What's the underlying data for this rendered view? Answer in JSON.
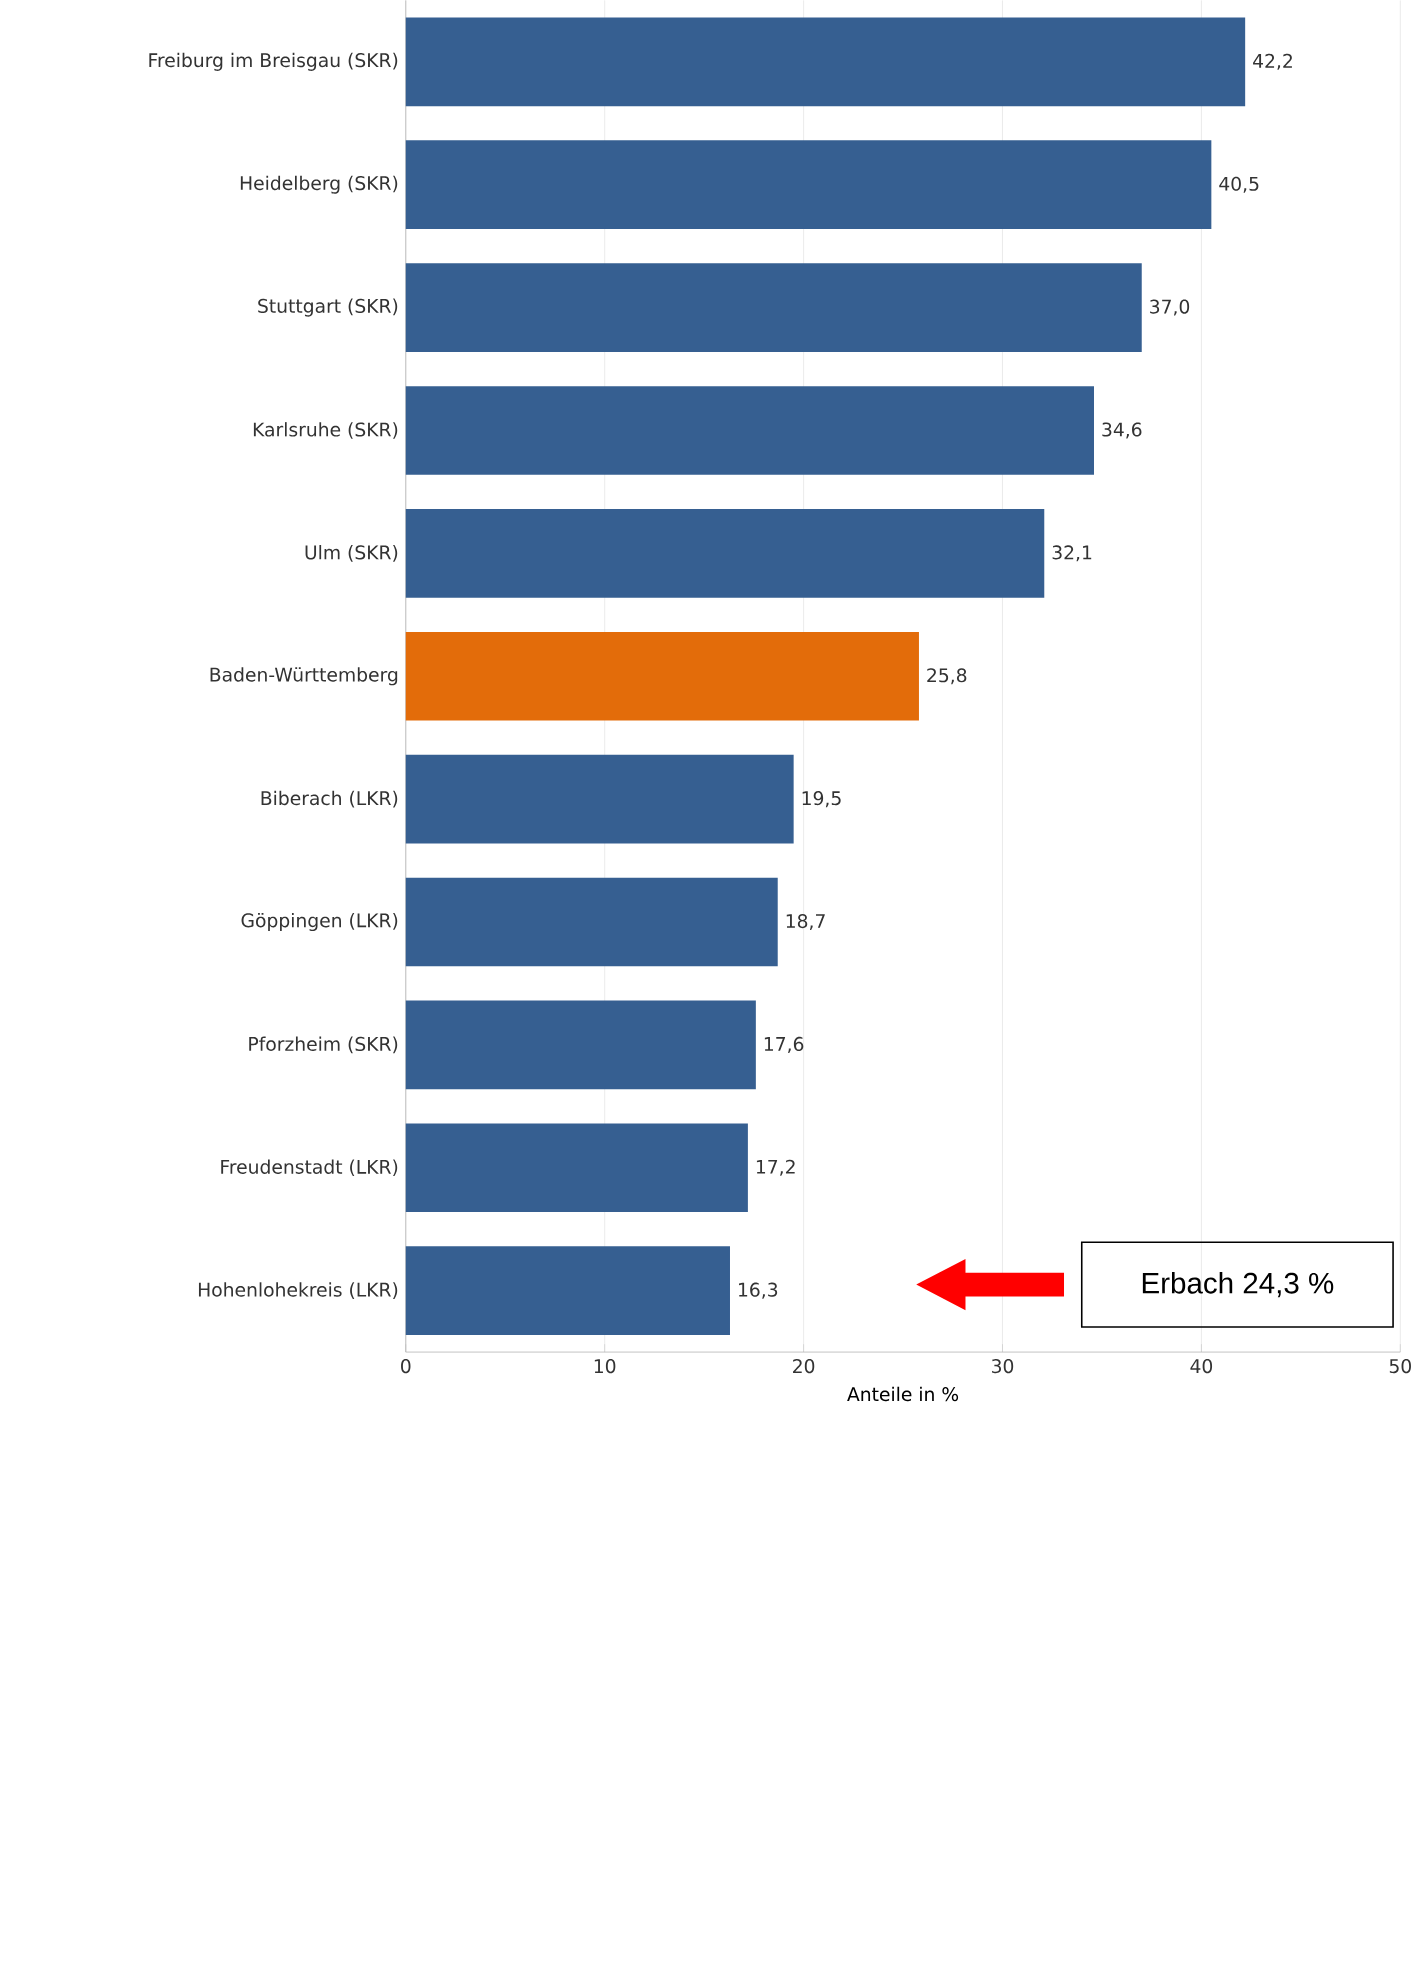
{
  "chart_data": {
    "type": "bar",
    "orientation": "horizontal",
    "xlabel": "Anteile in %",
    "categories": [
      "Freiburg im Breisgau (SKR)",
      "Heidelberg (SKR)",
      "Stuttgart (SKR)",
      "Karlsruhe (SKR)",
      "Ulm (SKR)",
      "Baden-Württemberg",
      "Biberach (LKR)",
      "Göppingen (LKR)",
      "Pforzheim (SKR)",
      "Freudenstadt (LKR)",
      "Hohenlohekreis (LKR)"
    ],
    "values": [
      42.2,
      40.5,
      37.0,
      34.6,
      32.1,
      25.8,
      19.5,
      18.7,
      17.6,
      17.2,
      16.3
    ],
    "value_labels": [
      "42,2",
      "40,5",
      "37,0",
      "34,6",
      "32,1",
      "25,8",
      "19,5",
      "18,7",
      "17,6",
      "17,2",
      "16,3"
    ],
    "colors": [
      "#365f91",
      "#365f91",
      "#365f91",
      "#365f91",
      "#365f91",
      "#e36c0a",
      "#365f91",
      "#365f91",
      "#365f91",
      "#365f91",
      "#365f91"
    ],
    "xlim": [
      0,
      50
    ],
    "xticks": [
      0,
      10,
      20,
      30,
      40,
      50
    ],
    "grid": "x",
    "annotations": [
      "Erbach 24,3 %"
    ]
  }
}
